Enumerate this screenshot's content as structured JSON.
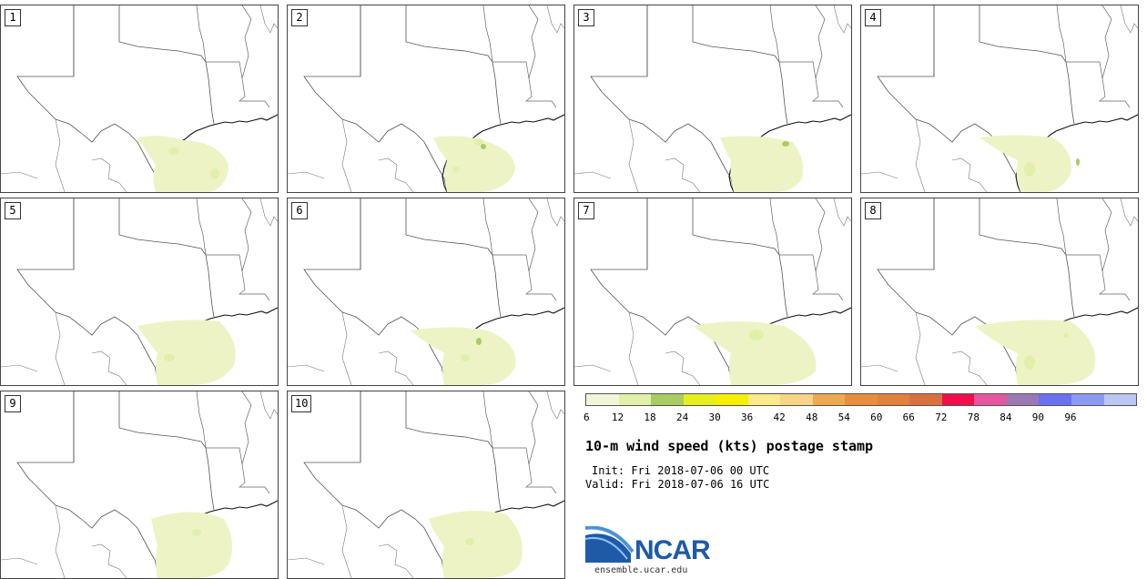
{
  "panels": [
    {
      "label": "1"
    },
    {
      "label": "2"
    },
    {
      "label": "3"
    },
    {
      "label": "4"
    },
    {
      "label": "5"
    },
    {
      "label": "6"
    },
    {
      "label": "7"
    },
    {
      "label": "8"
    },
    {
      "label": "9"
    },
    {
      "label": "10"
    }
  ],
  "colorbar": {
    "ticks": [
      "6",
      "12",
      "18",
      "24",
      "30",
      "36",
      "42",
      "48",
      "54",
      "60",
      "66",
      "72",
      "78",
      "84",
      "90",
      "96"
    ],
    "colors": [
      "#f2f5d8",
      "#e1f0a8",
      "#a7cc62",
      "#e5ef1d",
      "#f8ef00",
      "#fbe98a",
      "#f7d486",
      "#eda950",
      "#e78f3c",
      "#e1813a",
      "#d97040",
      "#ee0e4b",
      "#e4569f",
      "#9978b3",
      "#6a70f4",
      "#8b9af4",
      "#bac7f4"
    ]
  },
  "title": "10-m wind speed (kts) postage stamp",
  "init_text": "Init: Fri 2018-07-06 00 UTC",
  "valid_text": "Valid: Fri 2018-07-06 16 UTC",
  "logo": {
    "text": "NCAR",
    "url": "ensemble.ucar.edu"
  },
  "colors": {
    "light_fill": "#eef3c6",
    "mid_fill": "#e1f0a8",
    "dark_fill": "#a7cc62"
  }
}
